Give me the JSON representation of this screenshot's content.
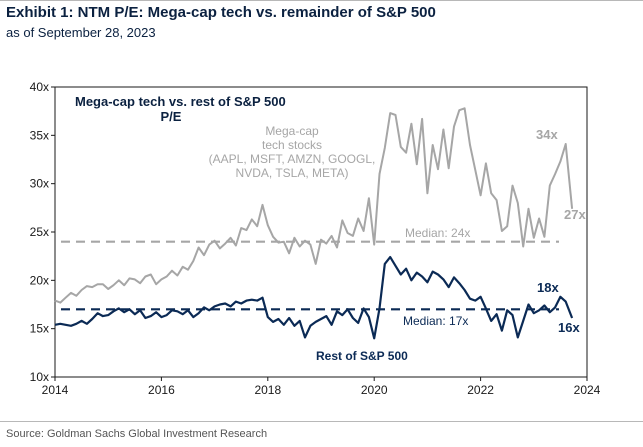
{
  "header": {
    "title": "Exhibit 1: NTM P/E: Mega-cap tech vs. remainder of S&P 500",
    "subtitle": "as of September 28, 2023"
  },
  "footer": {
    "source": "Source: Goldman Sachs Global Investment Research"
  },
  "colors": {
    "mega": "#a6a6a6",
    "rest": "#0b2a55",
    "text": "#0b2140"
  },
  "chart_data": {
    "type": "line",
    "title": "Mega-cap tech vs. rest of S&P 500",
    "subtitle": "P/E",
    "xlim": [
      2014,
      2024
    ],
    "ylim": [
      10,
      40
    ],
    "x_ticks": [
      2014,
      2016,
      2018,
      2020,
      2022,
      2024
    ],
    "x_tick_labels": [
      "2014",
      "2016",
      "2018",
      "2020",
      "2022",
      "2024"
    ],
    "y_ticks": [
      10,
      15,
      20,
      25,
      30,
      35,
      40
    ],
    "y_tick_labels": [
      "10x",
      "15x",
      "20x",
      "25x",
      "30x",
      "35x",
      "40x"
    ],
    "grid": false,
    "medians": [
      {
        "series": "Mega-cap tech stocks",
        "value": 24,
        "label": "Median: 24x"
      },
      {
        "series": "Rest of S&P 500",
        "value": 17,
        "label": "Median: 17x"
      }
    ],
    "annotations": [
      {
        "series": "Mega-cap tech stocks",
        "lines": [
          "Mega-cap",
          "tech stocks",
          "(AAPL, MSFT, AMZN, GOOGL,",
          "NVDA, TSLA, META)"
        ]
      },
      {
        "series": "Rest of S&P 500",
        "lines": [
          "Rest of S&P 500"
        ]
      },
      {
        "series": "Mega-cap tech stocks",
        "label": "34x"
      },
      {
        "series": "Mega-cap tech stocks",
        "label": "27x"
      },
      {
        "series": "Rest of S&P 500",
        "label": "18x"
      },
      {
        "series": "Rest of S&P 500",
        "label": "16x"
      }
    ],
    "series": [
      {
        "name": "Mega-cap tech stocks",
        "x": [
          2014.0,
          2014.1,
          2014.2,
          2014.3,
          2014.4,
          2014.5,
          2014.6,
          2014.7,
          2014.8,
          2014.9,
          2015.0,
          2015.1,
          2015.2,
          2015.3,
          2015.4,
          2015.5,
          2015.6,
          2015.7,
          2015.8,
          2015.9,
          2016.0,
          2016.1,
          2016.2,
          2016.3,
          2016.4,
          2016.5,
          2016.6,
          2016.7,
          2016.8,
          2016.9,
          2017.0,
          2017.1,
          2017.2,
          2017.3,
          2017.4,
          2017.5,
          2017.6,
          2017.7,
          2017.8,
          2017.9,
          2018.0,
          2018.1,
          2018.2,
          2018.3,
          2018.4,
          2018.5,
          2018.6,
          2018.7,
          2018.8,
          2018.9,
          2019.0,
          2019.1,
          2019.2,
          2019.3,
          2019.4,
          2019.5,
          2019.6,
          2019.7,
          2019.8,
          2019.9,
          2020.0,
          2020.1,
          2020.2,
          2020.3,
          2020.4,
          2020.5,
          2020.6,
          2020.7,
          2020.8,
          2020.9,
          2021.0,
          2021.1,
          2021.2,
          2021.3,
          2021.4,
          2021.5,
          2021.6,
          2021.7,
          2021.8,
          2021.9,
          2022.0,
          2022.1,
          2022.2,
          2022.3,
          2022.4,
          2022.5,
          2022.6,
          2022.7,
          2022.8,
          2022.9,
          2023.0,
          2023.1,
          2023.2,
          2023.3,
          2023.4,
          2023.5,
          2023.6,
          2023.72
        ],
        "values": [
          17.9,
          17.7,
          18.2,
          18.7,
          18.4,
          19.0,
          19.4,
          19.3,
          19.6,
          19.6,
          19.1,
          19.5,
          20.0,
          19.5,
          20.2,
          20.1,
          19.7,
          20.4,
          20.6,
          19.6,
          20.1,
          20.4,
          21.0,
          20.5,
          21.4,
          21.1,
          22.0,
          23.4,
          22.6,
          23.7,
          24.1,
          23.3,
          23.8,
          24.4,
          23.6,
          25.4,
          25.2,
          26.3,
          25.6,
          27.8,
          25.7,
          24.5,
          23.9,
          24.0,
          22.8,
          24.4,
          23.5,
          24.1,
          23.7,
          21.7,
          24.2,
          23.8,
          24.6,
          23.4,
          26.2,
          24.9,
          24.6,
          26.4,
          25.1,
          28.5,
          23.7,
          31.0,
          33.7,
          37.3,
          37.1,
          33.8,
          33.2,
          36.2,
          32.0,
          36.7,
          29.0,
          34.0,
          31.5,
          35.6,
          31.6,
          35.9,
          37.6,
          37.8,
          34.0,
          31.4,
          28.8,
          32.1,
          29.0,
          28.3,
          25.1,
          25.6,
          29.8,
          28.0,
          23.5,
          27.4,
          24.4,
          26.4,
          24.5,
          29.8,
          31.0,
          32.3,
          34.1,
          27.4
        ]
      },
      {
        "name": "Rest of S&P 500",
        "x": [
          2014.0,
          2014.1,
          2014.2,
          2014.3,
          2014.4,
          2014.5,
          2014.6,
          2014.7,
          2014.8,
          2014.9,
          2015.0,
          2015.1,
          2015.2,
          2015.3,
          2015.4,
          2015.5,
          2015.6,
          2015.7,
          2015.8,
          2015.9,
          2016.0,
          2016.1,
          2016.2,
          2016.3,
          2016.4,
          2016.5,
          2016.6,
          2016.7,
          2016.8,
          2016.9,
          2017.0,
          2017.1,
          2017.2,
          2017.3,
          2017.4,
          2017.5,
          2017.6,
          2017.7,
          2017.8,
          2017.9,
          2018.0,
          2018.1,
          2018.2,
          2018.3,
          2018.4,
          2018.5,
          2018.6,
          2018.7,
          2018.8,
          2018.9,
          2019.0,
          2019.1,
          2019.2,
          2019.3,
          2019.4,
          2019.5,
          2019.6,
          2019.7,
          2019.8,
          2019.9,
          2020.0,
          2020.1,
          2020.2,
          2020.3,
          2020.4,
          2020.5,
          2020.6,
          2020.7,
          2020.8,
          2020.9,
          2021.0,
          2021.1,
          2021.2,
          2021.3,
          2021.4,
          2021.5,
          2021.6,
          2021.7,
          2021.8,
          2021.9,
          2022.0,
          2022.1,
          2022.2,
          2022.3,
          2022.4,
          2022.5,
          2022.6,
          2022.7,
          2022.8,
          2022.9,
          2023.0,
          2023.1,
          2023.2,
          2023.3,
          2023.4,
          2023.5,
          2023.6,
          2023.72
        ],
        "values": [
          15.4,
          15.5,
          15.4,
          15.3,
          15.5,
          15.8,
          15.5,
          16.0,
          16.6,
          16.3,
          16.4,
          16.8,
          17.1,
          16.7,
          17.0,
          16.5,
          16.9,
          16.1,
          16.3,
          16.7,
          16.2,
          16.4,
          16.9,
          16.8,
          16.5,
          16.9,
          16.2,
          16.6,
          17.2,
          16.9,
          17.3,
          17.5,
          17.6,
          17.3,
          17.8,
          17.6,
          17.9,
          18.0,
          17.9,
          18.2,
          16.2,
          15.7,
          16.0,
          15.4,
          16.1,
          15.3,
          15.8,
          14.1,
          15.3,
          15.7,
          16.0,
          16.3,
          15.4,
          16.8,
          16.4,
          17.0,
          16.1,
          15.6,
          17.1,
          16.2,
          14.0,
          17.1,
          21.7,
          22.4,
          21.5,
          20.6,
          21.2,
          20.0,
          20.8,
          20.4,
          19.8,
          20.9,
          20.6,
          20.1,
          19.3,
          20.3,
          19.7,
          19.0,
          18.1,
          17.9,
          18.3,
          17.1,
          15.8,
          16.5,
          14.8,
          16.9,
          16.4,
          14.1,
          15.8,
          17.5,
          16.6,
          16.9,
          17.4,
          16.7,
          17.2,
          18.3,
          17.8,
          16.1
        ]
      }
    ]
  }
}
